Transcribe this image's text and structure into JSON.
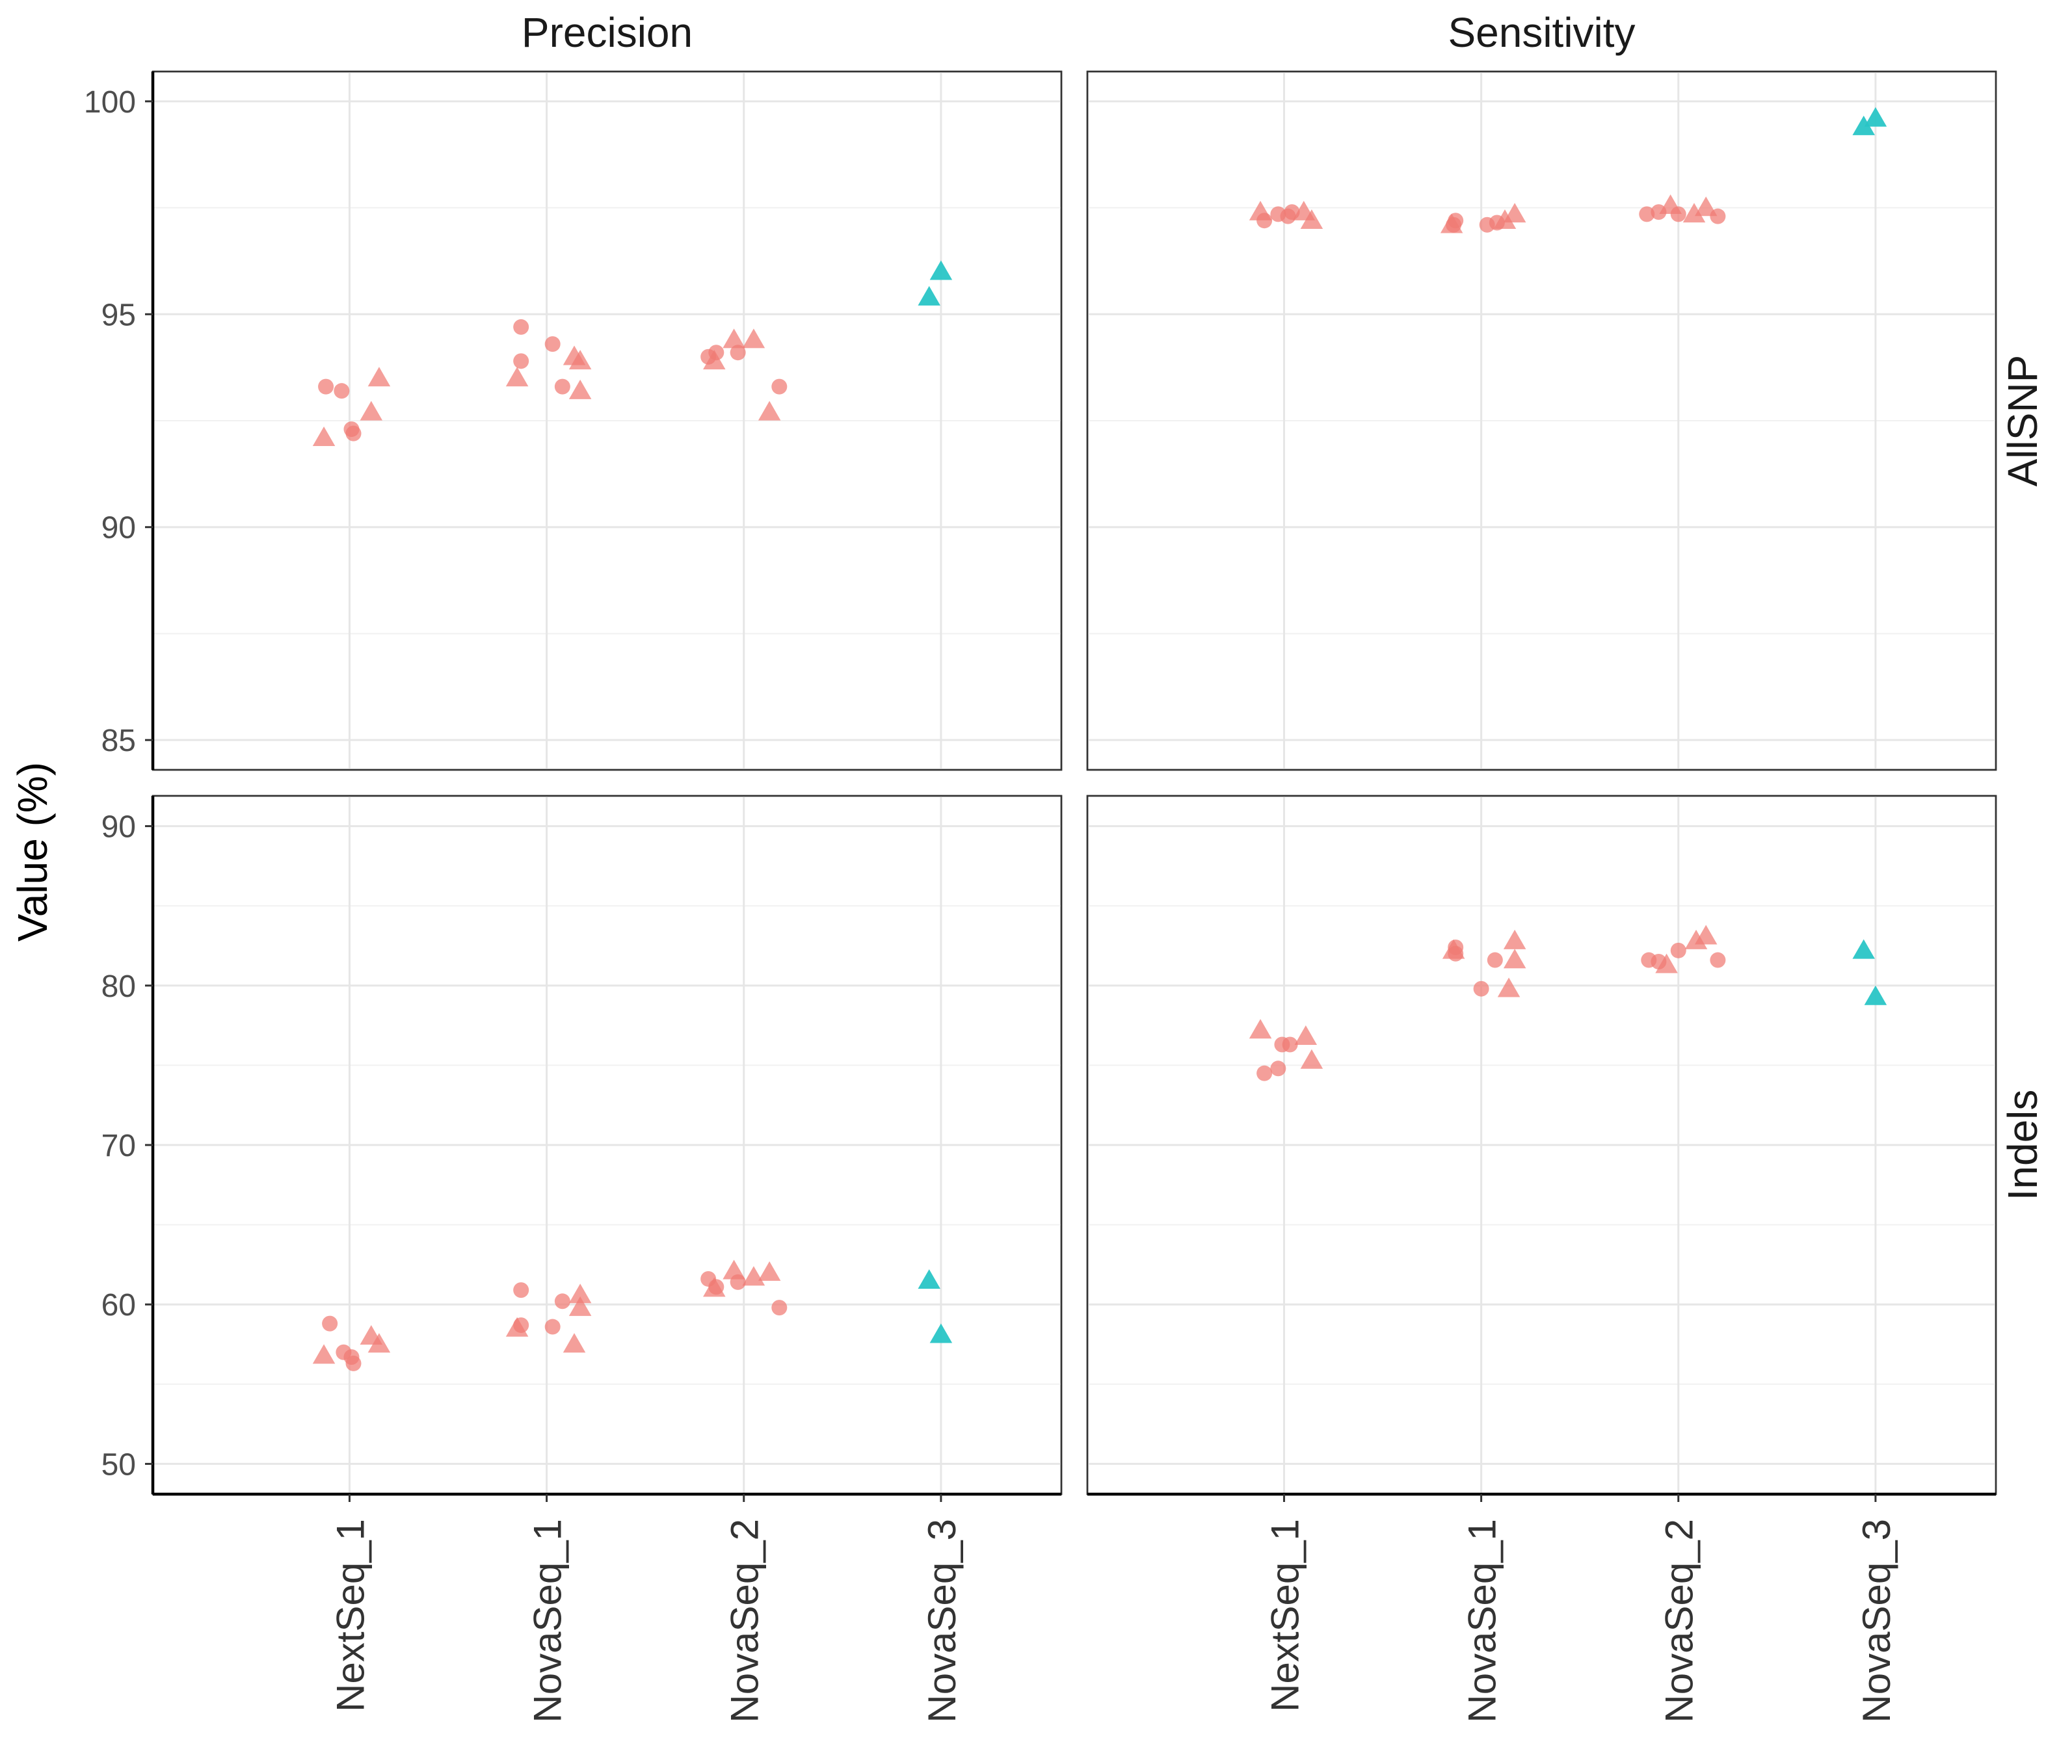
{
  "chart_data": {
    "type": "scatter",
    "ylabel": "Value (%)",
    "xlabel": "",
    "categories": [
      "NextSeq_1",
      "NovaSeq_1",
      "NovaSeq_2",
      "NovaSeq_3"
    ],
    "columns": [
      "Precision",
      "Sensitivity"
    ],
    "rows": [
      "AllSNP",
      "Indels"
    ],
    "grid": true,
    "legend": "none",
    "colors": {
      "group_a": "#F07A73",
      "group_b": "#29C5C6"
    },
    "panels": [
      {
        "column": "Precision",
        "row": "AllSNP",
        "ylim": [
          84.3,
          100.7
        ],
        "yticks": [
          85,
          90,
          95,
          100
        ],
        "points": [
          {
            "cat": 0,
            "dx": -0.12,
            "y": 93.3,
            "shape": "circle",
            "group": "a"
          },
          {
            "cat": 0,
            "dx": -0.04,
            "y": 93.2,
            "shape": "circle",
            "group": "a"
          },
          {
            "cat": 0,
            "dx": 0.01,
            "y": 92.3,
            "shape": "circle",
            "group": "a"
          },
          {
            "cat": 0,
            "dx": 0.02,
            "y": 92.2,
            "shape": "circle",
            "group": "a"
          },
          {
            "cat": 0,
            "dx": -0.13,
            "y": 92.1,
            "shape": "triangle",
            "group": "a"
          },
          {
            "cat": 0,
            "dx": 0.11,
            "y": 92.7,
            "shape": "triangle",
            "group": "a"
          },
          {
            "cat": 0,
            "dx": 0.15,
            "y": 93.5,
            "shape": "triangle",
            "group": "a"
          },
          {
            "cat": 1,
            "dx": -0.13,
            "y": 94.7,
            "shape": "circle",
            "group": "a"
          },
          {
            "cat": 1,
            "dx": -0.13,
            "y": 93.9,
            "shape": "circle",
            "group": "a"
          },
          {
            "cat": 1,
            "dx": 0.03,
            "y": 94.3,
            "shape": "circle",
            "group": "a"
          },
          {
            "cat": 1,
            "dx": 0.08,
            "y": 93.3,
            "shape": "circle",
            "group": "a"
          },
          {
            "cat": 1,
            "dx": -0.15,
            "y": 93.5,
            "shape": "triangle",
            "group": "a"
          },
          {
            "cat": 1,
            "dx": 0.14,
            "y": 94.0,
            "shape": "triangle",
            "group": "a"
          },
          {
            "cat": 1,
            "dx": 0.17,
            "y": 93.9,
            "shape": "triangle",
            "group": "a"
          },
          {
            "cat": 1,
            "dx": 0.17,
            "y": 93.2,
            "shape": "triangle",
            "group": "a"
          },
          {
            "cat": 2,
            "dx": -0.18,
            "y": 94.0,
            "shape": "circle",
            "group": "a"
          },
          {
            "cat": 2,
            "dx": -0.14,
            "y": 94.1,
            "shape": "circle",
            "group": "a"
          },
          {
            "cat": 2,
            "dx": -0.03,
            "y": 94.1,
            "shape": "circle",
            "group": "a"
          },
          {
            "cat": 2,
            "dx": 0.18,
            "y": 93.3,
            "shape": "circle",
            "group": "a"
          },
          {
            "cat": 2,
            "dx": -0.15,
            "y": 93.9,
            "shape": "triangle",
            "group": "a"
          },
          {
            "cat": 2,
            "dx": -0.05,
            "y": 94.4,
            "shape": "triangle",
            "group": "a"
          },
          {
            "cat": 2,
            "dx": 0.05,
            "y": 94.4,
            "shape": "triangle",
            "group": "a"
          },
          {
            "cat": 2,
            "dx": 0.13,
            "y": 92.7,
            "shape": "triangle",
            "group": "a"
          },
          {
            "cat": 3,
            "dx": -0.06,
            "y": 95.4,
            "shape": "triangle",
            "group": "b"
          },
          {
            "cat": 3,
            "dx": 0.0,
            "y": 96.0,
            "shape": "triangle",
            "group": "b"
          }
        ]
      },
      {
        "column": "Sensitivity",
        "row": "AllSNP",
        "ylim": [
          84.3,
          100.7
        ],
        "yticks": [
          85,
          90,
          95,
          100
        ],
        "points": [
          {
            "cat": 0,
            "dx": -0.1,
            "y": 97.2,
            "shape": "circle",
            "group": "a"
          },
          {
            "cat": 0,
            "dx": -0.03,
            "y": 97.35,
            "shape": "circle",
            "group": "a"
          },
          {
            "cat": 0,
            "dx": 0.02,
            "y": 97.3,
            "shape": "circle",
            "group": "a"
          },
          {
            "cat": 0,
            "dx": 0.04,
            "y": 97.4,
            "shape": "circle",
            "group": "a"
          },
          {
            "cat": 0,
            "dx": -0.12,
            "y": 97.4,
            "shape": "triangle",
            "group": "a"
          },
          {
            "cat": 0,
            "dx": 0.1,
            "y": 97.4,
            "shape": "triangle",
            "group": "a"
          },
          {
            "cat": 0,
            "dx": 0.14,
            "y": 97.2,
            "shape": "triangle",
            "group": "a"
          },
          {
            "cat": 1,
            "dx": -0.14,
            "y": 97.1,
            "shape": "circle",
            "group": "a"
          },
          {
            "cat": 1,
            "dx": -0.13,
            "y": 97.2,
            "shape": "circle",
            "group": "a"
          },
          {
            "cat": 1,
            "dx": 0.03,
            "y": 97.1,
            "shape": "circle",
            "group": "a"
          },
          {
            "cat": 1,
            "dx": 0.08,
            "y": 97.15,
            "shape": "circle",
            "group": "a"
          },
          {
            "cat": 1,
            "dx": -0.15,
            "y": 97.1,
            "shape": "triangle",
            "group": "a"
          },
          {
            "cat": 1,
            "dx": 0.12,
            "y": 97.2,
            "shape": "triangle",
            "group": "a"
          },
          {
            "cat": 1,
            "dx": 0.17,
            "y": 97.35,
            "shape": "triangle",
            "group": "a"
          },
          {
            "cat": 2,
            "dx": -0.16,
            "y": 97.35,
            "shape": "circle",
            "group": "a"
          },
          {
            "cat": 2,
            "dx": -0.1,
            "y": 97.4,
            "shape": "circle",
            "group": "a"
          },
          {
            "cat": 2,
            "dx": 0.0,
            "y": 97.35,
            "shape": "circle",
            "group": "a"
          },
          {
            "cat": 2,
            "dx": 0.2,
            "y": 97.3,
            "shape": "circle",
            "group": "a"
          },
          {
            "cat": 2,
            "dx": -0.04,
            "y": 97.55,
            "shape": "triangle",
            "group": "a"
          },
          {
            "cat": 2,
            "dx": 0.08,
            "y": 97.35,
            "shape": "triangle",
            "group": "a"
          },
          {
            "cat": 2,
            "dx": 0.14,
            "y": 97.5,
            "shape": "triangle",
            "group": "a"
          },
          {
            "cat": 3,
            "dx": -0.06,
            "y": 99.4,
            "shape": "triangle",
            "group": "b"
          },
          {
            "cat": 3,
            "dx": 0.0,
            "y": 99.6,
            "shape": "triangle",
            "group": "b"
          }
        ]
      },
      {
        "column": "Precision",
        "row": "Indels",
        "ylim": [
          48.1,
          91.9
        ],
        "yticks": [
          50,
          60,
          70,
          80,
          90
        ],
        "points": [
          {
            "cat": 0,
            "dx": -0.1,
            "y": 58.8,
            "shape": "circle",
            "group": "a"
          },
          {
            "cat": 0,
            "dx": -0.03,
            "y": 57.0,
            "shape": "circle",
            "group": "a"
          },
          {
            "cat": 0,
            "dx": 0.01,
            "y": 56.7,
            "shape": "circle",
            "group": "a"
          },
          {
            "cat": 0,
            "dx": 0.02,
            "y": 56.3,
            "shape": "circle",
            "group": "a"
          },
          {
            "cat": 0,
            "dx": -0.13,
            "y": 56.8,
            "shape": "triangle",
            "group": "a"
          },
          {
            "cat": 0,
            "dx": 0.11,
            "y": 58.0,
            "shape": "triangle",
            "group": "a"
          },
          {
            "cat": 0,
            "dx": 0.15,
            "y": 57.5,
            "shape": "triangle",
            "group": "a"
          },
          {
            "cat": 1,
            "dx": -0.13,
            "y": 60.9,
            "shape": "circle",
            "group": "a"
          },
          {
            "cat": 1,
            "dx": -0.13,
            "y": 58.7,
            "shape": "circle",
            "group": "a"
          },
          {
            "cat": 1,
            "dx": 0.03,
            "y": 58.6,
            "shape": "circle",
            "group": "a"
          },
          {
            "cat": 1,
            "dx": 0.08,
            "y": 60.2,
            "shape": "circle",
            "group": "a"
          },
          {
            "cat": 1,
            "dx": -0.15,
            "y": 58.5,
            "shape": "triangle",
            "group": "a"
          },
          {
            "cat": 1,
            "dx": 0.14,
            "y": 57.5,
            "shape": "triangle",
            "group": "a"
          },
          {
            "cat": 1,
            "dx": 0.17,
            "y": 60.6,
            "shape": "triangle",
            "group": "a"
          },
          {
            "cat": 1,
            "dx": 0.17,
            "y": 59.8,
            "shape": "triangle",
            "group": "a"
          },
          {
            "cat": 2,
            "dx": -0.18,
            "y": 61.6,
            "shape": "circle",
            "group": "a"
          },
          {
            "cat": 2,
            "dx": -0.14,
            "y": 61.1,
            "shape": "circle",
            "group": "a"
          },
          {
            "cat": 2,
            "dx": -0.03,
            "y": 61.4,
            "shape": "circle",
            "group": "a"
          },
          {
            "cat": 2,
            "dx": 0.18,
            "y": 59.8,
            "shape": "circle",
            "group": "a"
          },
          {
            "cat": 2,
            "dx": -0.15,
            "y": 61.0,
            "shape": "triangle",
            "group": "a"
          },
          {
            "cat": 2,
            "dx": -0.05,
            "y": 62.1,
            "shape": "triangle",
            "group": "a"
          },
          {
            "cat": 2,
            "dx": 0.05,
            "y": 61.7,
            "shape": "triangle",
            "group": "a"
          },
          {
            "cat": 2,
            "dx": 0.13,
            "y": 62.0,
            "shape": "triangle",
            "group": "a"
          },
          {
            "cat": 3,
            "dx": -0.06,
            "y": 61.5,
            "shape": "triangle",
            "group": "b"
          },
          {
            "cat": 3,
            "dx": 0.0,
            "y": 58.1,
            "shape": "triangle",
            "group": "b"
          }
        ]
      },
      {
        "column": "Sensitivity",
        "row": "Indels",
        "ylim": [
          48.1,
          91.9
        ],
        "yticks": [
          50,
          60,
          70,
          80,
          90
        ],
        "points": [
          {
            "cat": 0,
            "dx": -0.1,
            "y": 74.5,
            "shape": "circle",
            "group": "a"
          },
          {
            "cat": 0,
            "dx": -0.03,
            "y": 74.8,
            "shape": "circle",
            "group": "a"
          },
          {
            "cat": 0,
            "dx": -0.01,
            "y": 76.3,
            "shape": "circle",
            "group": "a"
          },
          {
            "cat": 0,
            "dx": 0.03,
            "y": 76.3,
            "shape": "circle",
            "group": "a"
          },
          {
            "cat": 0,
            "dx": -0.12,
            "y": 77.2,
            "shape": "triangle",
            "group": "a"
          },
          {
            "cat": 0,
            "dx": 0.11,
            "y": 76.8,
            "shape": "triangle",
            "group": "a"
          },
          {
            "cat": 0,
            "dx": 0.14,
            "y": 75.3,
            "shape": "triangle",
            "group": "a"
          },
          {
            "cat": 1,
            "dx": -0.13,
            "y": 82.4,
            "shape": "circle",
            "group": "a"
          },
          {
            "cat": 1,
            "dx": -0.13,
            "y": 82.0,
            "shape": "circle",
            "group": "a"
          },
          {
            "cat": 1,
            "dx": 0.0,
            "y": 79.8,
            "shape": "circle",
            "group": "a"
          },
          {
            "cat": 1,
            "dx": 0.07,
            "y": 81.6,
            "shape": "circle",
            "group": "a"
          },
          {
            "cat": 1,
            "dx": -0.14,
            "y": 82.2,
            "shape": "triangle",
            "group": "a"
          },
          {
            "cat": 1,
            "dx": 0.14,
            "y": 79.8,
            "shape": "triangle",
            "group": "a"
          },
          {
            "cat": 1,
            "dx": 0.17,
            "y": 82.8,
            "shape": "triangle",
            "group": "a"
          },
          {
            "cat": 1,
            "dx": 0.17,
            "y": 81.6,
            "shape": "triangle",
            "group": "a"
          },
          {
            "cat": 2,
            "dx": -0.15,
            "y": 81.6,
            "shape": "circle",
            "group": "a"
          },
          {
            "cat": 2,
            "dx": -0.1,
            "y": 81.5,
            "shape": "circle",
            "group": "a"
          },
          {
            "cat": 2,
            "dx": 0.0,
            "y": 82.2,
            "shape": "circle",
            "group": "a"
          },
          {
            "cat": 2,
            "dx": 0.2,
            "y": 81.6,
            "shape": "circle",
            "group": "a"
          },
          {
            "cat": 2,
            "dx": -0.06,
            "y": 81.3,
            "shape": "triangle",
            "group": "a"
          },
          {
            "cat": 2,
            "dx": 0.09,
            "y": 82.8,
            "shape": "triangle",
            "group": "a"
          },
          {
            "cat": 2,
            "dx": 0.14,
            "y": 83.1,
            "shape": "triangle",
            "group": "a"
          },
          {
            "cat": 3,
            "dx": -0.06,
            "y": 82.2,
            "shape": "triangle",
            "group": "b"
          },
          {
            "cat": 3,
            "dx": 0.0,
            "y": 79.3,
            "shape": "triangle",
            "group": "b"
          }
        ]
      }
    ]
  }
}
